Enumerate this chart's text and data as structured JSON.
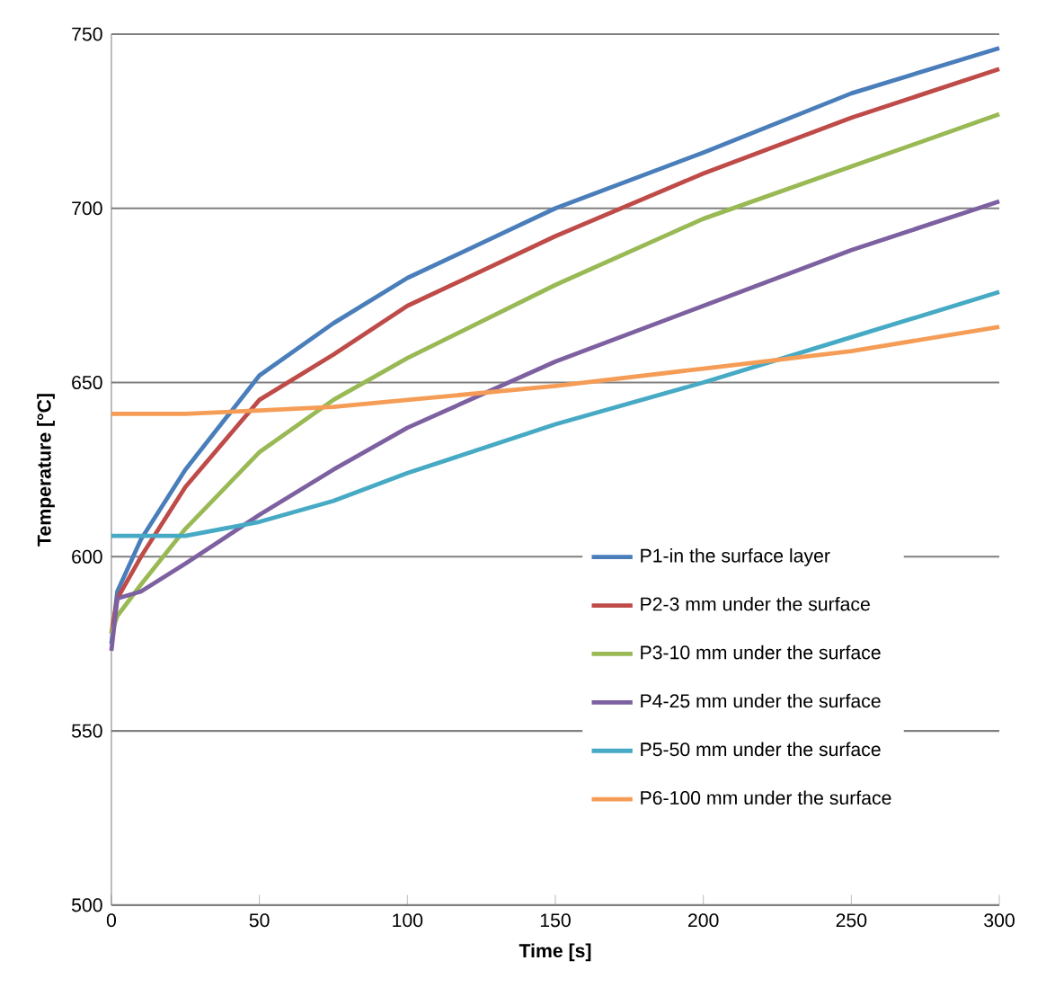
{
  "chart_data": {
    "type": "line",
    "xlabel": "Time [s]",
    "ylabel": "Temperature [°C]",
    "x": [
      0,
      2,
      10,
      25,
      50,
      75,
      100,
      150,
      200,
      250,
      300
    ],
    "series": [
      {
        "name": "P1-in the surface layer",
        "color": "#4a7ebb",
        "values": [
          575,
          590,
          605,
          625,
          652,
          667,
          680,
          700,
          716,
          733,
          746
        ]
      },
      {
        "name": "P2-3 mm under the surface",
        "color": "#be4b48",
        "values": [
          578,
          588,
          600,
          620,
          645,
          658,
          672,
          692,
          710,
          726,
          740
        ]
      },
      {
        "name": "P3-10 mm under the surface",
        "color": "#98b954",
        "values": [
          578,
          583,
          592,
          608,
          630,
          645,
          657,
          678,
          697,
          712,
          727
        ]
      },
      {
        "name": "P4-25 mm under the surface",
        "color": "#7d60a0",
        "values": [
          573,
          588,
          590,
          598,
          612,
          625,
          637,
          656,
          672,
          688,
          702
        ]
      },
      {
        "name": "P5-50 mm under the surface",
        "color": "#46aac5",
        "values": [
          606,
          606,
          606,
          606,
          610,
          616,
          624,
          638,
          650,
          663,
          676
        ]
      },
      {
        "name": "P6-100 mm under the surface",
        "color": "#f59d56",
        "values": [
          641,
          641,
          641,
          641,
          642,
          643,
          645,
          649,
          654,
          659,
          666
        ]
      }
    ],
    "xlim": [
      0,
      300
    ],
    "ylim": [
      500,
      750
    ],
    "xticks": [
      0,
      50,
      100,
      150,
      200,
      250,
      300
    ],
    "yticks": [
      500,
      550,
      600,
      650,
      700,
      750
    ],
    "grid": "y",
    "legend": "right",
    "marker": "none",
    "line_style": "solid"
  }
}
